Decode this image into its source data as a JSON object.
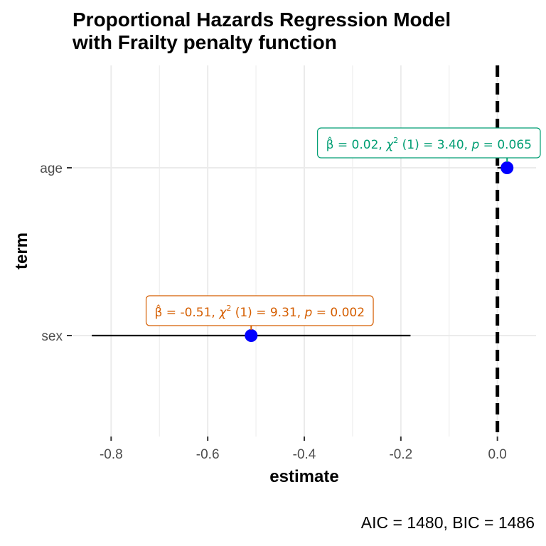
{
  "title_lines": [
    "Proportional Hazards Regression Model",
    "with Frailty penalty function"
  ],
  "footer": "AIC = 1480, BIC = 1486",
  "colors": {
    "background": "#ffffff",
    "grid": "#ebebeb",
    "point": "#0000ff",
    "ci_line": "#000000",
    "reference_line": "#000000"
  },
  "chart_data": {
    "type": "forest",
    "title": "Proportional Hazards Regression Model with Frailty penalty function",
    "xlabel": "estimate",
    "ylabel": "term",
    "xlim": [
      -0.88,
      0.08
    ],
    "x_ticks": [
      -0.8,
      -0.6,
      -0.4,
      -0.2,
      0.0
    ],
    "x_tick_labels": [
      "-0.8",
      "-0.6",
      "-0.4",
      "-0.2",
      "0.0"
    ],
    "reference_x": 0,
    "grid": true,
    "terms": [
      {
        "term": "sex",
        "estimate": -0.51,
        "conf_low": -0.84,
        "conf_high": -0.18,
        "color": "#d55e00",
        "label": {
          "stat": "= -0.51,",
          "chi": "(1) = 9.31,",
          "p": "= 0.002"
        }
      },
      {
        "term": "age",
        "estimate": 0.02,
        "conf_low": 0.0,
        "conf_high": 0.03,
        "color": "#009e73",
        "label": {
          "stat": "= 0.02,",
          "chi": "(1) = 3.40,",
          "p": "= 0.065"
        }
      }
    ]
  }
}
